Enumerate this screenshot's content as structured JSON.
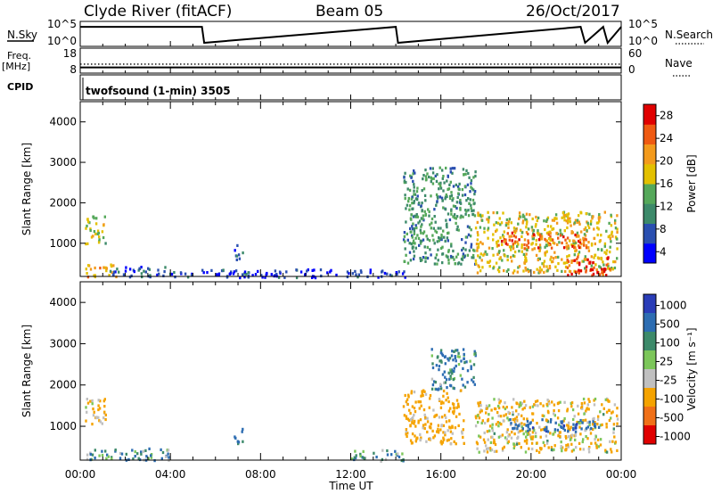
{
  "header": {
    "station": "Clyde River (fitACF)",
    "beam": "Beam 05",
    "date": "26/Oct/2017"
  },
  "nsky_panel": {
    "left_label": "N.Sky",
    "left_ticks": [
      "10^5",
      "10^0"
    ],
    "right_ticks": [
      "10^5",
      "10^0"
    ],
    "right_label": "N.Search"
  },
  "freq_panel": {
    "left_label_line1": "Freq.",
    "left_label_line2": "[MHz]",
    "left_ticks": [
      "18",
      "8"
    ],
    "right_ticks": [
      "60",
      "0"
    ],
    "right_label": "Nave"
  },
  "cpid_panel": {
    "left_label": "CPID",
    "program_label": "twofsound (1-min) 3505"
  },
  "x_axis": {
    "label": "Time UT",
    "ticks": [
      "00:00",
      "04:00",
      "08:00",
      "12:00",
      "16:00",
      "20:00",
      "00:00"
    ]
  },
  "power_colorbar": {
    "label": "Power [dB]",
    "ticks": [
      "4",
      "8",
      "12",
      "16",
      "20",
      "24",
      "28"
    ],
    "colors": [
      "#0000ff",
      "#2a4fb0",
      "#3d8a6a",
      "#55a85a",
      "#e3c000",
      "#f39a1c",
      "#ef5a12",
      "#e00000"
    ]
  },
  "velocity_colorbar": {
    "label": "Velocity [m s⁻¹]",
    "ticks": [
      "1000",
      "500",
      "100",
      "25",
      "-25",
      "-100",
      "-500",
      "-1000"
    ],
    "colors": [
      "#2a3db8",
      "#2d6db2",
      "#3d8a6a",
      "#7cc65a",
      "#c0c0c0",
      "#f5a300",
      "#f07018",
      "#e00000"
    ]
  },
  "chart_data": [
    {
      "type": "line",
      "title": "",
      "xlabel": "",
      "ylabel": "N.Sky",
      "y_scale": "log",
      "ylim": [
        1,
        100000
      ],
      "y2label": "N.Search",
      "xlim_hours": [
        0,
        24
      ],
      "series": [
        {
          "x": [
            0,
            5.4,
            5.5,
            14.0,
            14.1,
            22.2,
            22.4,
            23.2,
            23.4,
            24
          ],
          "values": [
            30000,
            30000,
            1,
            30000,
            1,
            30000,
            1,
            30000,
            1,
            30000
          ]
        }
      ]
    },
    {
      "type": "line",
      "title": "",
      "xlabel": "",
      "ylabel": "Freq. [MHz]",
      "ylim": [
        8,
        18
      ],
      "y2label": "Nave",
      "y2lim": [
        0,
        60
      ],
      "xlim_hours": [
        0,
        24
      ],
      "series": [
        {
          "name": "Nave",
          "x": [
            0,
            24
          ],
          "values": [
            22,
            22
          ]
        },
        {
          "x": [
            0,
            24
          ],
          "values": [
            10,
            10
          ]
        }
      ]
    },
    {
      "type": "heatmap",
      "title": "",
      "xlabel": "Time UT",
      "ylabel": "Slant Range [km]",
      "zlabel": "Power [dB]",
      "ylim": [
        180,
        4500
      ],
      "xlim_hours": [
        0,
        24
      ],
      "yticks": [
        1000,
        2000,
        3000,
        4000
      ],
      "clim": [
        2,
        30
      ],
      "patches": [
        {
          "t": [
            0.2,
            1.1
          ],
          "r": [
            1000,
            1700
          ],
          "v": 16
        },
        {
          "t": [
            0.2,
            1.6
          ],
          "r": [
            200,
            500
          ],
          "v": 20
        },
        {
          "t": [
            1.2,
            4.0
          ],
          "r": [
            200,
            450
          ],
          "v": 8
        },
        {
          "t": [
            4.0,
            14.5
          ],
          "r": [
            180,
            380
          ],
          "v": 6
        },
        {
          "t": [
            6.8,
            7.2
          ],
          "r": [
            600,
            1000
          ],
          "v": 8
        },
        {
          "t": [
            14.3,
            17.5
          ],
          "r": [
            500,
            2900
          ],
          "v": 12
        },
        {
          "t": [
            17.5,
            23.8
          ],
          "r": [
            300,
            1800
          ],
          "v": 18
        },
        {
          "t": [
            18.5,
            22.5
          ],
          "r": [
            900,
            1300
          ],
          "v": 24
        },
        {
          "t": [
            21.5,
            23.5
          ],
          "r": [
            200,
            700
          ],
          "v": 26
        }
      ]
    },
    {
      "type": "heatmap",
      "title": "",
      "xlabel": "Time UT",
      "ylabel": "Slant Range [km]",
      "zlabel": "Velocity [m s⁻¹]",
      "ylim": [
        180,
        4500
      ],
      "xlim_hours": [
        0,
        24
      ],
      "yticks": [
        1000,
        2000,
        3000,
        4000
      ],
      "clim": [
        -1000,
        1000
      ],
      "patches": [
        {
          "t": [
            0.2,
            1.1
          ],
          "r": [
            1000,
            1700
          ],
          "v": -150
        },
        {
          "t": [
            0.2,
            4.0
          ],
          "r": [
            200,
            500
          ],
          "v": 80
        },
        {
          "t": [
            6.8,
            7.2
          ],
          "r": [
            600,
            1000
          ],
          "v": 200
        },
        {
          "t": [
            12.0,
            14.3
          ],
          "r": [
            180,
            450
          ],
          "v": 40
        },
        {
          "t": [
            14.3,
            17.0
          ],
          "r": [
            600,
            1900
          ],
          "v": -200
        },
        {
          "t": [
            15.5,
            17.5
          ],
          "r": [
            1900,
            2900
          ],
          "v": 120
        },
        {
          "t": [
            17.5,
            23.8
          ],
          "r": [
            400,
            1700
          ],
          "v": -120
        },
        {
          "t": [
            19.0,
            23.0
          ],
          "r": [
            900,
            1200
          ],
          "v": 400
        }
      ]
    }
  ]
}
